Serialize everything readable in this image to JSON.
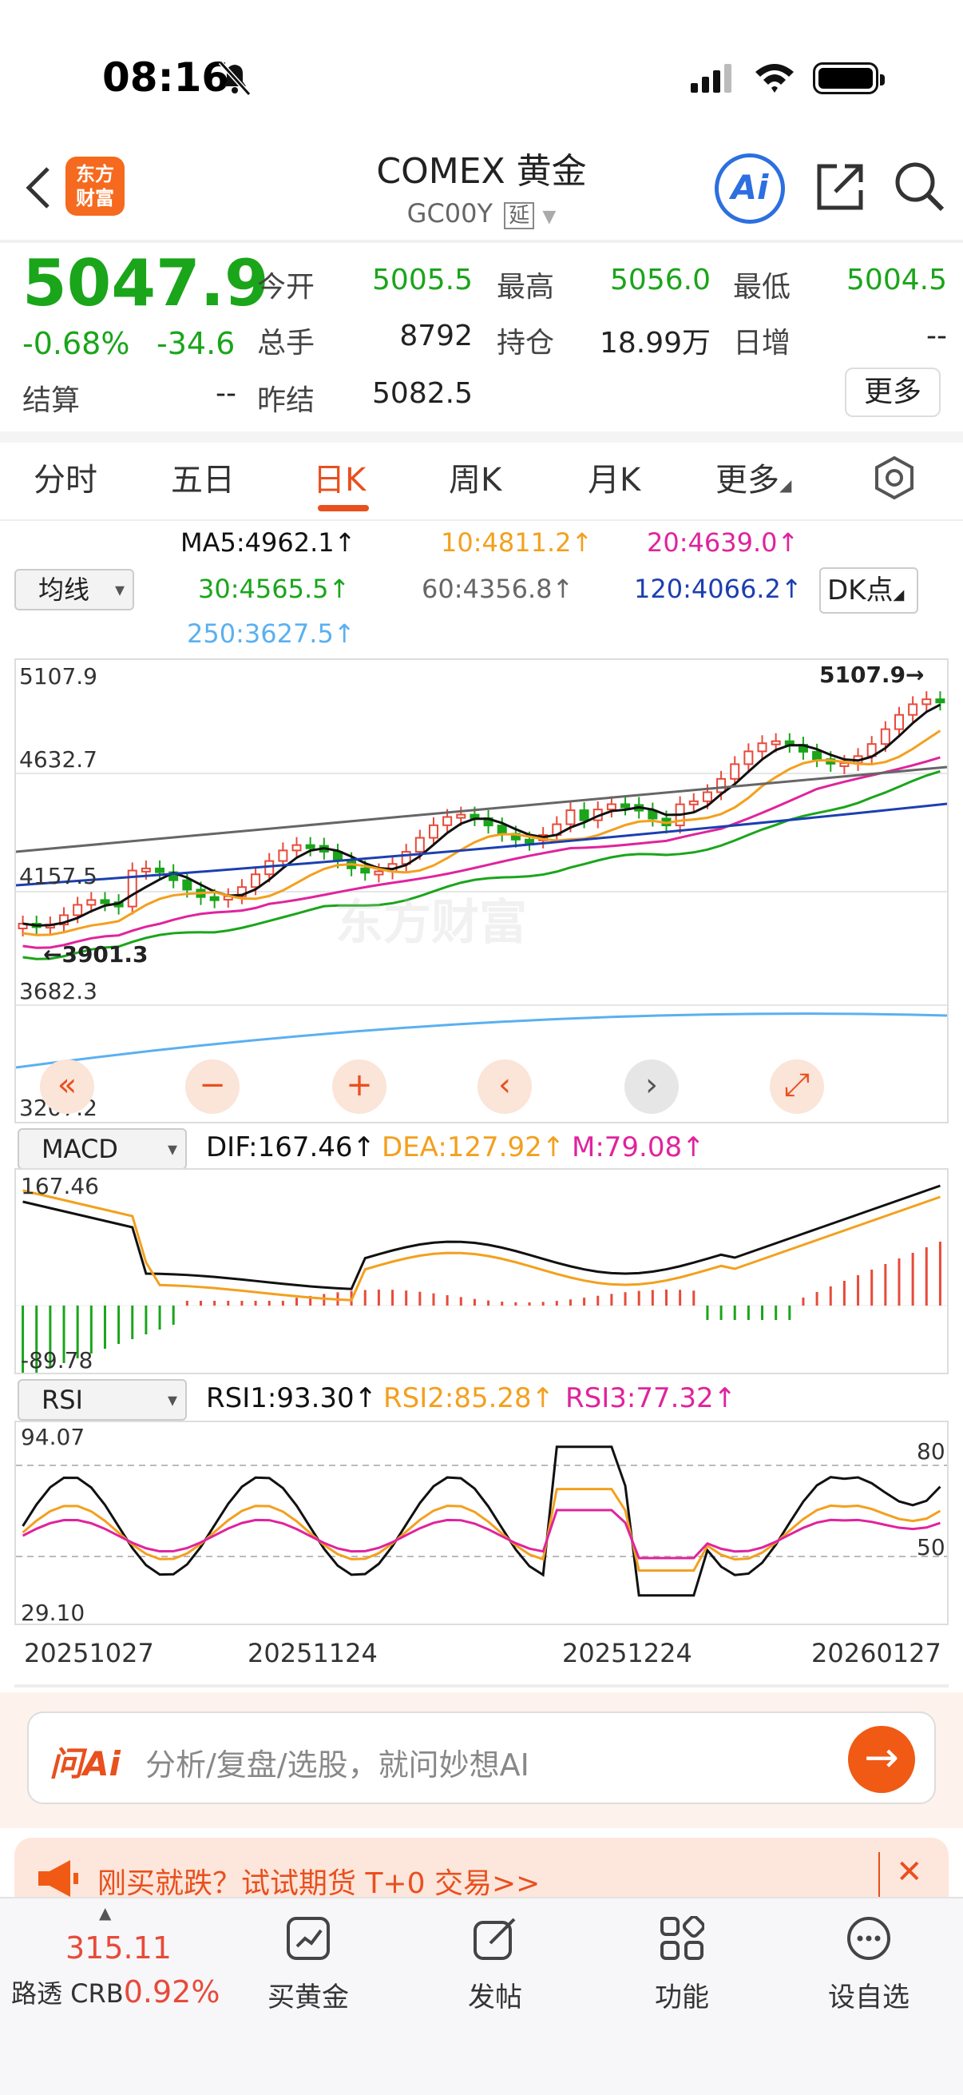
{
  "status": {
    "time": "08:16"
  },
  "header": {
    "logo_line1": "东方",
    "logo_line2": "财富",
    "title": "COMEX 黄金",
    "code": "GC00Y",
    "delay_tag": "延",
    "ai_label": "Ai"
  },
  "quote": {
    "price": "5047.9",
    "pct": "-0.68%",
    "chg": "-34.6",
    "open_label": "今开",
    "open": "5005.5",
    "high_label": "最高",
    "high": "5056.0",
    "low_label": "最低",
    "low": "5004.5",
    "vol_label": "总手",
    "vol": "8792",
    "oi_label": "持仓",
    "oi": "18.99万",
    "inc_label": "日增",
    "inc": "--",
    "settle_label": "结算",
    "settle": "--",
    "prev_label": "昨结",
    "prev": "5082.5",
    "more": "更多"
  },
  "tabs": [
    "分时",
    "五日",
    "日K",
    "周K",
    "月K",
    "更多"
  ],
  "ma": {
    "ma5": "MA5:4962.1↑",
    "ma10": "10:4811.2↑",
    "ma20": "20:4639.0↑",
    "ma30": "30:4565.5↑",
    "ma60": "60:4356.8↑",
    "ma120": "120:4066.2↑",
    "ma250": "250:3627.5↑",
    "select": "均线",
    "dk": "DK点"
  },
  "main_chart": {
    "y_labels": [
      "5107.9",
      "4632.7",
      "4157.5",
      "3682.3",
      "3207.2"
    ],
    "high_marker": "5107.9→",
    "low_marker": "←3901.3",
    "watermark": "东方财富"
  },
  "macd": {
    "select": "MACD",
    "dif": "DIF:167.46↑",
    "dea": "DEA:127.92↑",
    "m": "M:79.08↑",
    "top": "167.46",
    "bottom": "-89.78"
  },
  "rsi": {
    "select": "RSI",
    "r1": "RSI1:93.30↑",
    "r2": "RSI2:85.28↑",
    "r3": "RSI3:77.32↑",
    "top": "94.07",
    "bottom": "29.10",
    "l80": "80",
    "l50": "50"
  },
  "dates": [
    "20251027",
    "20251124",
    "20251224",
    "20260127"
  ],
  "ask": {
    "brand": "问Ai",
    "placeholder": "分析/复盘/选股，就问妙想AI"
  },
  "banner": {
    "text": "刚买就跌？试试期货 T+0 交易>>"
  },
  "bottom": {
    "crb_value": "315.11",
    "crb_label": "路透 CRB",
    "crb_pct": "0.92%",
    "items": [
      "买黄金",
      "发帖",
      "功能",
      "设自选"
    ]
  },
  "colors": {
    "up": "#e84a3a",
    "down": "#1aa51a",
    "accent": "#e8501e",
    "ma5": "#111111",
    "ma10": "#f3a01e",
    "ma20": "#e0239c",
    "ma30": "#1aa51a",
    "ma60": "#666666",
    "ma120": "#1c3fb0",
    "ma250": "#5ab0f0"
  }
}
